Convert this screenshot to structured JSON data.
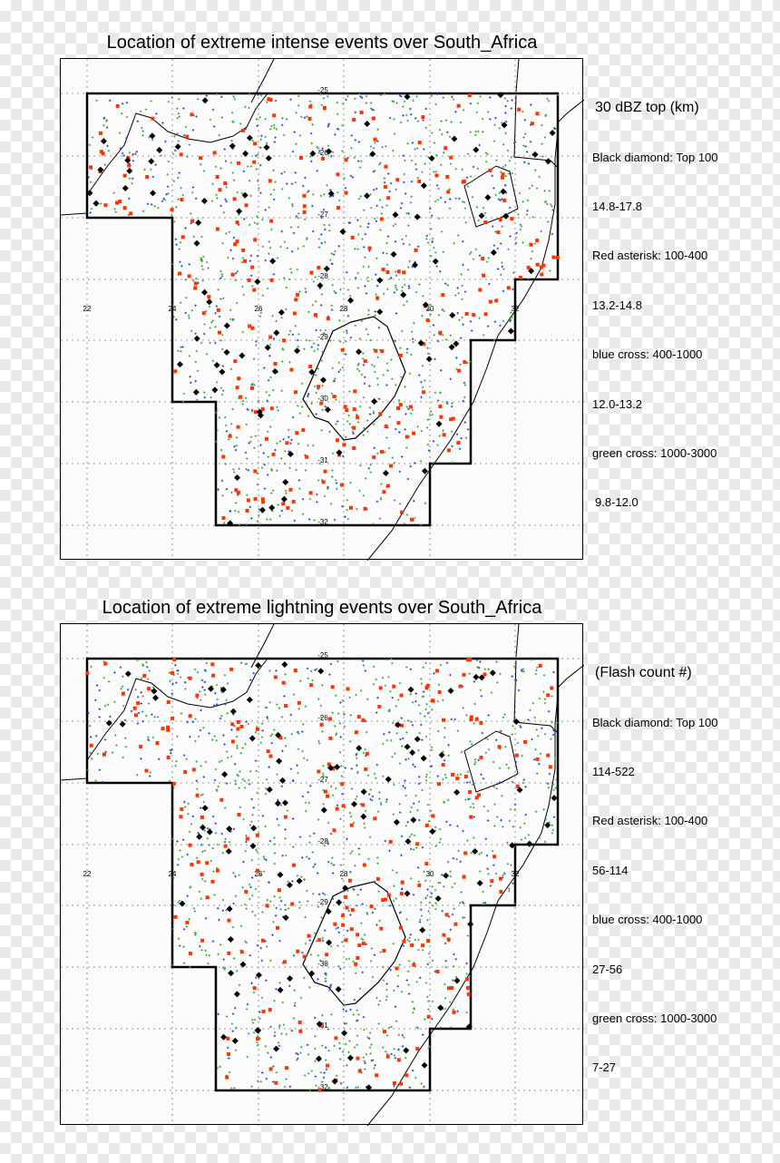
{
  "panels": [
    {
      "title": "Location of extreme intense events over South_Africa",
      "legend": {
        "header": "30 dBZ top (km)",
        "items": [
          "Black diamond: Top 100",
          "14.8-17.8",
          "Red asterisk: 100-400",
          "13.2-14.8",
          "blue cross: 400-1000",
          "12.0-13.2",
          "green cross: 1000-3000",
          "9.8-12.0"
        ]
      },
      "lon_labels": [
        "22",
        "24",
        "26",
        "28",
        "30",
        "32"
      ],
      "lat_labels": [
        "-25",
        "-26",
        "-27",
        "-28",
        "-29",
        "-30",
        "-31",
        "-32"
      ]
    },
    {
      "title": "Location of extreme lightning  events over South_Africa",
      "legend": {
        "header": "(Flash count #)",
        "items": [
          "Black diamond: Top 100",
          "114-522",
          "Red asterisk: 100-400",
          "56-114",
          "blue cross: 400-1000",
          "27-56",
          "green cross: 1000-3000",
          "7-27"
        ]
      },
      "lon_labels": [
        "22",
        "24",
        "26",
        "28",
        "30",
        "32"
      ],
      "lat_labels": [
        "-25",
        "-26",
        "-27",
        "-28",
        "-29",
        "-30",
        "-31",
        "-32"
      ]
    }
  ],
  "colors": {
    "top100": "#000000",
    "red": "#ff3300",
    "blue": "#2a4bd7",
    "green": "#3aa63a"
  },
  "icons": [
    "black-diamond-marker",
    "red-asterisk-marker",
    "blue-cross-marker",
    "green-cross-marker"
  ]
}
